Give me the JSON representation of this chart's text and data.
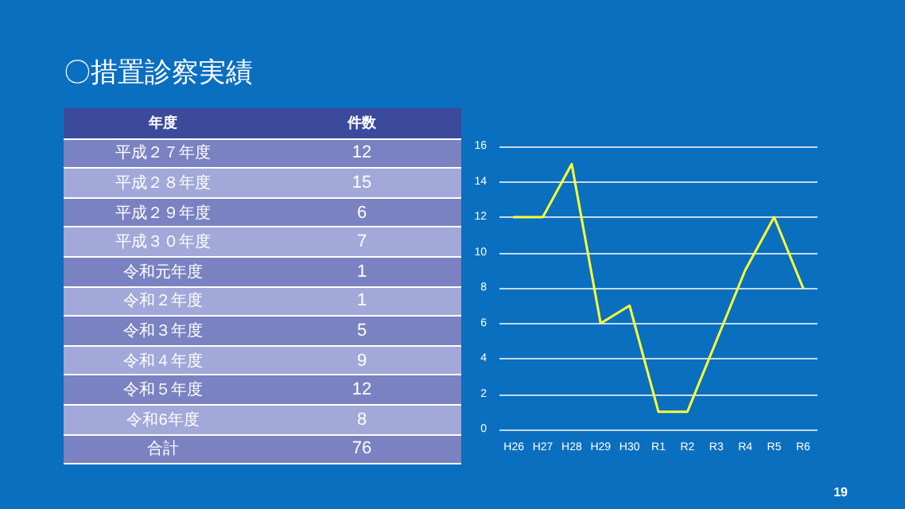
{
  "chart_data": [
    {
      "type": "other",
      "title": "〇措置診察実績",
      "xlabel": "年度",
      "ylabel": "件数",
      "categories": [
        "平成２７年度",
        "平成２８年度",
        "平成２９年度",
        "平成３０年度",
        "令和元年度",
        "令和２年度",
        "令和３年度",
        "令和４年度",
        "令和５年度",
        "令和6年度",
        "合計"
      ],
      "values": [
        12,
        15,
        6,
        7,
        1,
        1,
        5,
        9,
        12,
        8,
        76
      ],
      "data_labels": true
    },
    {
      "type": "line",
      "categories": [
        "H26",
        "H27",
        "H28",
        "H29",
        "H30",
        "R1",
        "R2",
        "R3",
        "R4",
        "R5",
        "R6"
      ],
      "series": [
        {
          "color": "#ffff33",
          "values": [
            12,
            12,
            15,
            6,
            7,
            1,
            1,
            5,
            9,
            12,
            8
          ]
        }
      ],
      "ylim": [
        0,
        16
      ],
      "yticks": [
        0,
        2,
        4,
        6,
        8,
        10,
        12,
        14,
        16
      ],
      "grid": "y",
      "marker": "none",
      "line_style": "solid",
      "annotations": [
        "19"
      ]
    }
  ]
}
